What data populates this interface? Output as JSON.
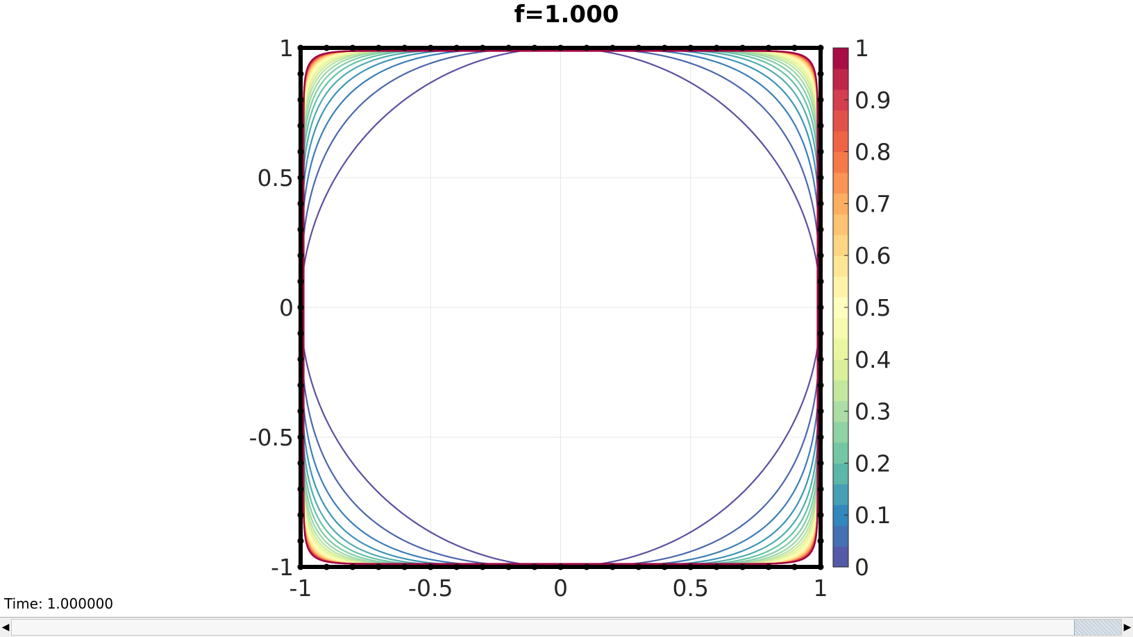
{
  "status": {
    "time_label": "Time:",
    "time_value": "1.000000"
  },
  "colors": {
    "colormap": [
      "#5e4fa2",
      "#3288bd",
      "#66c2a5",
      "#abdda4",
      "#e6f598",
      "#ffffbf",
      "#fee08b",
      "#fdae61",
      "#f46d43",
      "#d53e4f",
      "#9e0142"
    ],
    "boundary": "#000000",
    "grid": "#e6e6e6"
  },
  "chart_data": {
    "type": "contour",
    "title": "f=1.000",
    "xlabel": "",
    "ylabel": "",
    "xlim": [
      -1,
      1
    ],
    "ylim": [
      -1,
      1
    ],
    "x_ticks": [
      -1,
      -0.5,
      0,
      0.5,
      1
    ],
    "x_tick_labels": [
      "-1",
      "-0.5",
      "0",
      "0.5",
      "1"
    ],
    "y_ticks": [
      -1,
      -0.5,
      0,
      0.5,
      1
    ],
    "y_tick_labels": [
      "-1",
      "-0.5",
      "0",
      "0.5",
      "1"
    ],
    "grid": true,
    "contour_levels": [
      0,
      0.04,
      0.08,
      0.12,
      0.16,
      0.2,
      0.24,
      0.28,
      0.32,
      0.36,
      0.4,
      0.44,
      0.48,
      0.52,
      0.56,
      0.6,
      0.64,
      0.68,
      0.72,
      0.76,
      0.8,
      0.84,
      0.88,
      0.92,
      0.96,
      1.0
    ],
    "boundary_markers_per_side": 20,
    "colorbar": {
      "position": "right",
      "range": [
        0,
        1
      ],
      "ticks": [
        0,
        0.1,
        0.2,
        0.3,
        0.4,
        0.5,
        0.6,
        0.7,
        0.8,
        0.9,
        1
      ],
      "tick_labels": [
        "0",
        "0.1",
        "0.2",
        "0.3",
        "0.4",
        "0.5",
        "0.6",
        "0.7",
        "0.8",
        "0.9",
        "1"
      ],
      "bands": 25
    }
  }
}
